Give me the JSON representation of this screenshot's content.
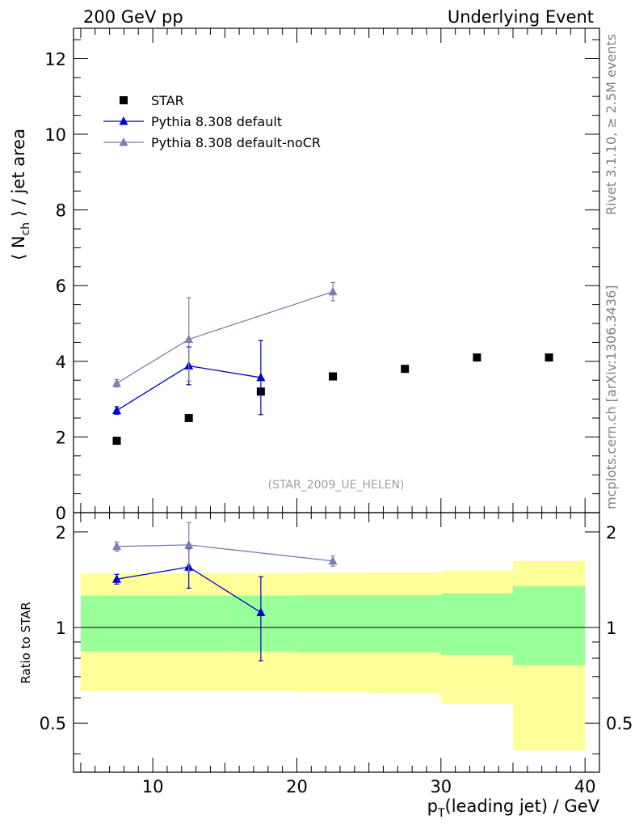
{
  "header": {
    "left": "200 GeV pp",
    "right": "Underlying Event"
  },
  "side_texts": {
    "rivet": "Rivet 3.1.10, ≥ 2.5M events",
    "mcplots": "mcplots.cern.ch [arXiv:1306.3436]"
  },
  "chart_data": [
    {
      "type": "scatter",
      "ylabel": "⟨ N_ch ⟩ / jet area",
      "xlabel": "p_T(leading jet) / GeV",
      "xlim": [
        4.5,
        41.0
      ],
      "ylim": [
        0,
        12.8
      ],
      "yticks": [
        0,
        2,
        4,
        6,
        8,
        10,
        12
      ],
      "xticks": [
        10,
        20,
        30,
        40
      ],
      "annotation": "(STAR_2009_UE_HELEN)",
      "legend_position": "top-left",
      "series": [
        {
          "name": "STAR",
          "marker": "square",
          "color": "#000000",
          "x": [
            7.5,
            12.5,
            17.5,
            22.5,
            27.5,
            32.5,
            37.5
          ],
          "y": [
            1.9,
            2.5,
            3.2,
            3.6,
            3.8,
            4.1,
            4.1
          ]
        },
        {
          "name": "Pythia 8.308 default",
          "marker": "triangle",
          "color": "#0000cc",
          "x": [
            7.5,
            12.5,
            17.5
          ],
          "y": [
            2.7,
            3.88,
            3.57
          ],
          "err": [
            0.1,
            0.5,
            0.98
          ]
        },
        {
          "name": "Pythia 8.308 default-noCR",
          "marker": "triangle",
          "color": "#7f7fb2",
          "x": [
            7.5,
            12.5,
            22.5
          ],
          "y": [
            3.42,
            4.58,
            5.84
          ],
          "err": [
            0.1,
            1.1,
            0.24
          ]
        }
      ]
    },
    {
      "type": "scatter",
      "ylabel": "Ratio to STAR",
      "xlabel": "p_T(leading jet) / GeV",
      "xlim": [
        4.5,
        41.0
      ],
      "ylim": [
        0.35,
        2.3
      ],
      "yticks": [
        0.5,
        1,
        2
      ],
      "reference": 1.0,
      "bands": {
        "edges": [
          5,
          10,
          15,
          20,
          25,
          30,
          35,
          40
        ],
        "inner_color": "#99ff99",
        "outer_color": "#ffff99",
        "inner_low": [
          0.84,
          0.84,
          0.84,
          0.835,
          0.835,
          0.82,
          0.76
        ],
        "inner_high": [
          1.26,
          1.26,
          1.26,
          1.265,
          1.265,
          1.28,
          1.35
        ],
        "outer_low": [
          0.63,
          0.63,
          0.63,
          0.625,
          0.62,
          0.575,
          0.41
        ],
        "outer_high": [
          1.48,
          1.48,
          1.48,
          1.485,
          1.49,
          1.51,
          1.62
        ]
      },
      "series": [
        {
          "name": "Pythia 8.308 default",
          "marker": "triangle",
          "color": "#0000cc",
          "x": [
            7.5,
            12.5,
            17.5
          ],
          "y": [
            1.42,
            1.55,
            1.115
          ],
          "err": [
            0.05,
            0.22,
            0.33
          ]
        },
        {
          "name": "Pythia 8.308 default-noCR",
          "marker": "triangle",
          "color": "#7f7fb2",
          "x": [
            7.5,
            12.5,
            22.5
          ],
          "y": [
            1.8,
            1.82,
            1.62
          ],
          "err": [
            0.06,
            0.32,
            0.06
          ]
        }
      ]
    }
  ]
}
